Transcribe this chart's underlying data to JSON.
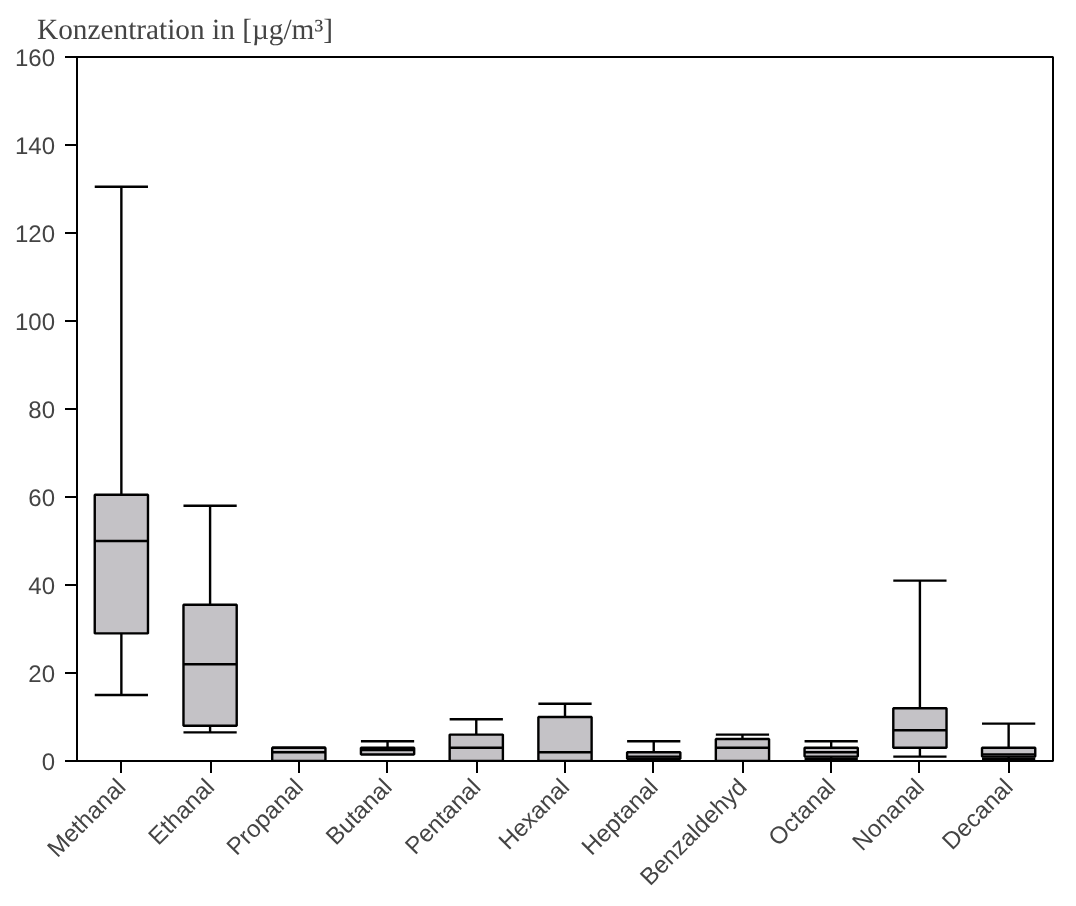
{
  "chart_data": {
    "type": "box",
    "ylabel": "Konzentration in [µg/m³]",
    "categories": [
      "Methanal",
      "Ethanal",
      "Propanal",
      "Butanal",
      "Pentanal",
      "Hexanal",
      "Heptanal",
      "Benzaldehyd",
      "Octanal",
      "Nonanal",
      "Decanal"
    ],
    "series": [
      {
        "color": "#c4c2c6",
        "boxes": [
          {
            "low": 15,
            "q1": 29,
            "median": 50,
            "q3": 60.5,
            "high": 130.5
          },
          {
            "low": 6.5,
            "q1": 8,
            "median": 22,
            "q3": 35.5,
            "high": 58
          },
          {
            "low": 0,
            "q1": 0,
            "median": 2,
            "q3": 3,
            "high": 3
          },
          {
            "low": 1.5,
            "q1": 1.5,
            "median": 2.5,
            "q3": 3,
            "high": 4.5
          },
          {
            "low": 0,
            "q1": 0,
            "median": 3,
            "q3": 6,
            "high": 9.5
          },
          {
            "low": 0,
            "q1": 0,
            "median": 2,
            "q3": 10,
            "high": 13
          },
          {
            "low": 0,
            "q1": 0.5,
            "median": 1,
            "q3": 2,
            "high": 4.5
          },
          {
            "low": 0,
            "q1": 0,
            "median": 3,
            "q3": 5,
            "high": 6
          },
          {
            "low": 0.5,
            "q1": 1,
            "median": 2,
            "q3": 3,
            "high": 4.5
          },
          {
            "low": 1,
            "q1": 3,
            "median": 7,
            "q3": 12,
            "high": 41
          },
          {
            "low": 0.5,
            "q1": 1,
            "median": 1.5,
            "q3": 3,
            "high": 8.5
          }
        ]
      }
    ],
    "ylim": [
      0,
      160
    ],
    "yticks": [
      0,
      20,
      40,
      60,
      80,
      100,
      120,
      140,
      160
    ],
    "grid": false
  }
}
